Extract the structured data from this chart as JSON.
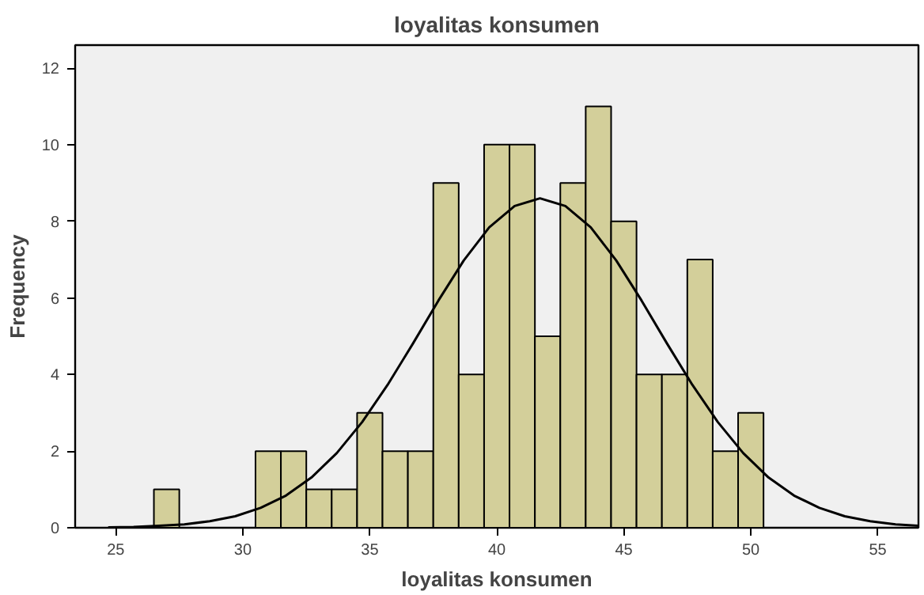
{
  "chart_data": {
    "type": "histogram",
    "title": "loyalitas konsumen",
    "xlabel": "loyalitas konsumen",
    "ylabel": "Frequency",
    "bins": [
      26.5,
      27.5,
      28.5,
      29.5,
      30.5,
      31.5,
      32.5,
      33.5,
      34.5,
      35.5,
      36.5,
      37.5,
      38.5,
      39.5,
      40.5,
      41.5,
      42.5,
      43.5,
      44.5,
      45.5,
      46.5,
      47.5,
      48.5,
      49.5,
      50.5
    ],
    "values": [
      1,
      0,
      0,
      0,
      2,
      2,
      1,
      1,
      3,
      2,
      2,
      9,
      4,
      10,
      10,
      5,
      9,
      11,
      8,
      4,
      4,
      7,
      2,
      3
    ],
    "color": "#d3cf9a",
    "series": [
      {
        "type": "line",
        "color": "#000000",
        "x": [
          24.7,
          25.7,
          26.7,
          27.7,
          28.7,
          29.7,
          30.7,
          31.7,
          32.7,
          33.7,
          34.7,
          35.7,
          36.7,
          37.7,
          38.7,
          39.7,
          40.7,
          41.7,
          42.7,
          43.7,
          44.7,
          45.7,
          46.7,
          47.7,
          48.7,
          49.7,
          50.7,
          51.7,
          52.7,
          53.7,
          54.7,
          55.7,
          56.6
        ],
        "values": [
          0.01,
          0.02,
          0.05,
          0.09,
          0.17,
          0.3,
          0.52,
          0.84,
          1.31,
          1.95,
          2.76,
          3.73,
          4.81,
          5.93,
          6.98,
          7.84,
          8.4,
          8.6,
          8.4,
          7.84,
          6.98,
          5.93,
          4.81,
          3.73,
          2.76,
          1.95,
          1.31,
          0.84,
          0.52,
          0.3,
          0.17,
          0.09,
          0.05
        ]
      }
    ],
    "xlim": [
      23.4,
      56.6
    ],
    "ylim": [
      0,
      12.6
    ],
    "xticks": [
      25,
      30,
      35,
      40,
      45,
      50,
      55
    ],
    "yticks": [
      0,
      2,
      4,
      6,
      8,
      10,
      12
    ],
    "grid": false
  }
}
